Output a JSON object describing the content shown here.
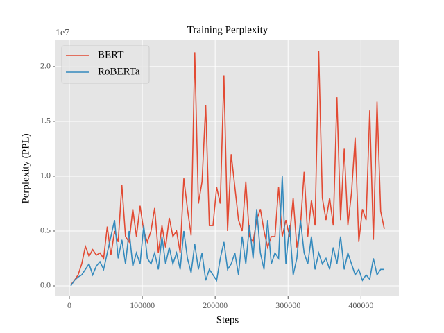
{
  "chart_data": {
    "type": "line",
    "title": "Training Perplexity",
    "xlabel": "Steps",
    "ylabel": "Perplexity (PPL)",
    "y_offset_text": "1e7",
    "x": [
      2000,
      7000,
      12000,
      17000,
      22000,
      27000,
      32000,
      37000,
      42000,
      47000,
      52000,
      57000,
      62000,
      67000,
      72000,
      77000,
      82000,
      87000,
      92000,
      97000,
      102000,
      107000,
      112000,
      117000,
      122000,
      127000,
      132000,
      137000,
      142000,
      147000,
      152000,
      157000,
      162000,
      167000,
      172000,
      177000,
      182000,
      187000,
      192000,
      197000,
      202000,
      207000,
      212000,
      217000,
      222000,
      227000,
      232000,
      237000,
      242000,
      247000,
      252000,
      257000,
      262000,
      267000,
      272000,
      277000,
      282000,
      287000,
      292000,
      297000,
      302000,
      307000,
      312000,
      317000,
      322000,
      327000,
      332000,
      337000,
      342000,
      347000,
      352000,
      357000,
      362000,
      367000,
      372000,
      377000,
      382000,
      387000,
      392000,
      397000,
      402000,
      407000,
      412000,
      417000,
      422000,
      427000,
      432000
    ],
    "series": [
      {
        "name": "BERT",
        "color": "#e24a33",
        "values": [
          0.01,
          0.05,
          0.1,
          0.2,
          0.36,
          0.27,
          0.33,
          0.28,
          0.3,
          0.25,
          0.54,
          0.28,
          0.5,
          0.4,
          0.92,
          0.45,
          0.4,
          0.7,
          0.45,
          0.73,
          0.5,
          0.4,
          0.5,
          0.71,
          0.3,
          0.55,
          0.35,
          0.62,
          0.45,
          0.5,
          0.3,
          0.98,
          0.7,
          0.46,
          2.13,
          0.75,
          0.95,
          1.65,
          0.55,
          0.55,
          0.9,
          0.75,
          1.92,
          0.5,
          1.2,
          0.9,
          0.6,
          0.5,
          0.95,
          0.45,
          0.4,
          0.6,
          0.7,
          0.5,
          0.35,
          0.45,
          0.45,
          0.9,
          0.45,
          0.6,
          0.45,
          0.8,
          0.35,
          0.55,
          1.04,
          0.45,
          0.78,
          0.55,
          2.14,
          0.8,
          0.6,
          0.8,
          0.55,
          1.72,
          0.6,
          1.25,
          0.55,
          0.85,
          1.35,
          0.4,
          0.7,
          0.6,
          1.6,
          0.42,
          1.68,
          0.68,
          0.52
        ]
      },
      {
        "name": "RoBERTa",
        "color": "#348abd",
        "values": [
          0.0,
          0.05,
          0.08,
          0.1,
          0.15,
          0.2,
          0.1,
          0.18,
          0.22,
          0.15,
          0.3,
          0.45,
          0.6,
          0.25,
          0.42,
          0.2,
          0.5,
          0.18,
          0.3,
          0.2,
          0.55,
          0.25,
          0.2,
          0.3,
          0.15,
          0.45,
          0.2,
          0.35,
          0.2,
          0.3,
          0.15,
          0.5,
          0.25,
          0.12,
          0.38,
          0.15,
          0.3,
          0.05,
          0.15,
          0.1,
          0.05,
          0.25,
          0.4,
          0.15,
          0.2,
          0.3,
          0.1,
          0.45,
          0.2,
          0.55,
          0.25,
          0.7,
          0.3,
          0.15,
          0.6,
          0.2,
          0.3,
          0.25,
          1.0,
          0.2,
          0.55,
          0.1,
          0.25,
          0.6,
          0.3,
          0.2,
          0.45,
          0.15,
          0.3,
          0.2,
          0.25,
          0.15,
          0.35,
          0.2,
          0.45,
          0.15,
          0.3,
          0.2,
          0.1,
          0.15,
          0.05,
          0.1,
          0.06,
          0.25,
          0.1,
          0.15,
          0.15
        ]
      }
    ],
    "xlim": [
      -19000,
      452000
    ],
    "xticks": [
      0,
      100000,
      200000,
      300000,
      400000
    ],
    "ylim": [
      -0.095,
      2.24
    ],
    "yticks": [
      {
        "value": 0,
        "label": "0.0"
      },
      {
        "value": 0.5,
        "label": "0.5"
      },
      {
        "value": 1,
        "label": "1.0"
      },
      {
        "value": 1.5,
        "label": "1.5"
      },
      {
        "value": 2,
        "label": "2.0"
      }
    ],
    "grid": true,
    "legend": "upper left"
  }
}
